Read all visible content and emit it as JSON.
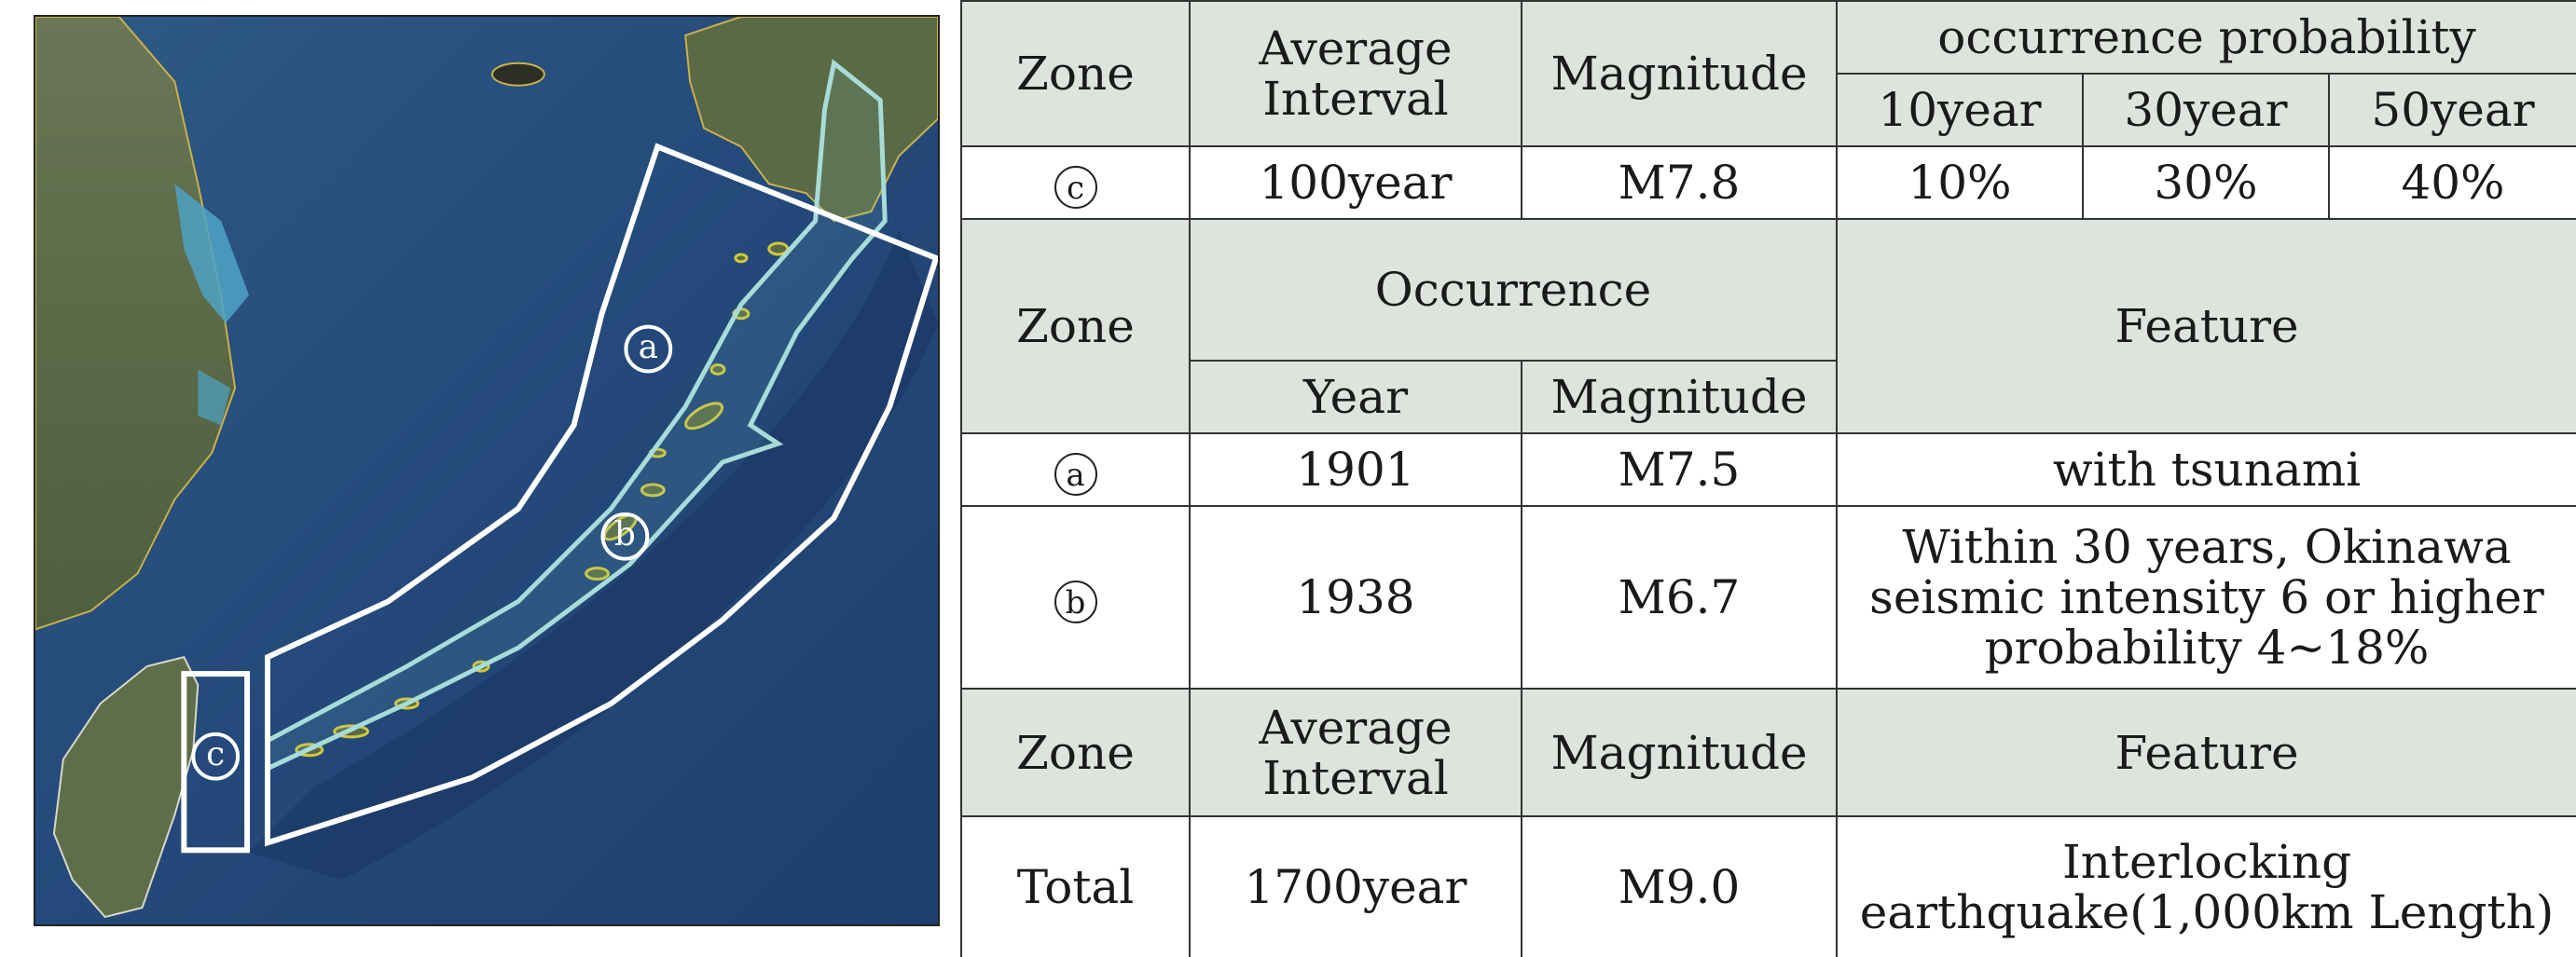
{
  "map": {
    "zone_labels": [
      "a",
      "b",
      "c"
    ],
    "colors": {
      "sea": "#2c4d7a",
      "land": "#5c6b47",
      "zone_box": "#ffffff",
      "trench_band": "#a8dcd8",
      "islands": "#c8c43c"
    }
  },
  "table": {
    "section1": {
      "header": {
        "zone": "Zone",
        "interval": "Average Interval",
        "magnitude": "Magnitude",
        "probability": "occurrence probability",
        "p10": "10year",
        "p30": "30year",
        "p50": "50year"
      },
      "row": {
        "zone": "c",
        "interval": "100year",
        "magnitude": "M7.8",
        "p10": "10%",
        "p30": "30%",
        "p50": "40%"
      }
    },
    "section2": {
      "header": {
        "zone": "Zone",
        "occurrence": "Occurrence",
        "year": "Year",
        "magnitude": "Magnitude",
        "feature": "Feature"
      },
      "rows": [
        {
          "zone": "a",
          "year": "1901",
          "magnitude": "M7.5",
          "feature": "with tsunami"
        },
        {
          "zone": "b",
          "year": "1938",
          "magnitude": "M6.7",
          "feature": "Within 30 years, Okinawa seismic intensity 6 or higher probability 4~18%"
        }
      ]
    },
    "section3": {
      "header": {
        "zone": "Zone",
        "interval": "Average Interval",
        "magnitude": "Magnitude",
        "feature": "Feature"
      },
      "row": {
        "zone": "Total",
        "interval": "1700year",
        "magnitude": "M9.0",
        "feature": "Interlocking earthquake(1,000km Length)"
      }
    }
  }
}
